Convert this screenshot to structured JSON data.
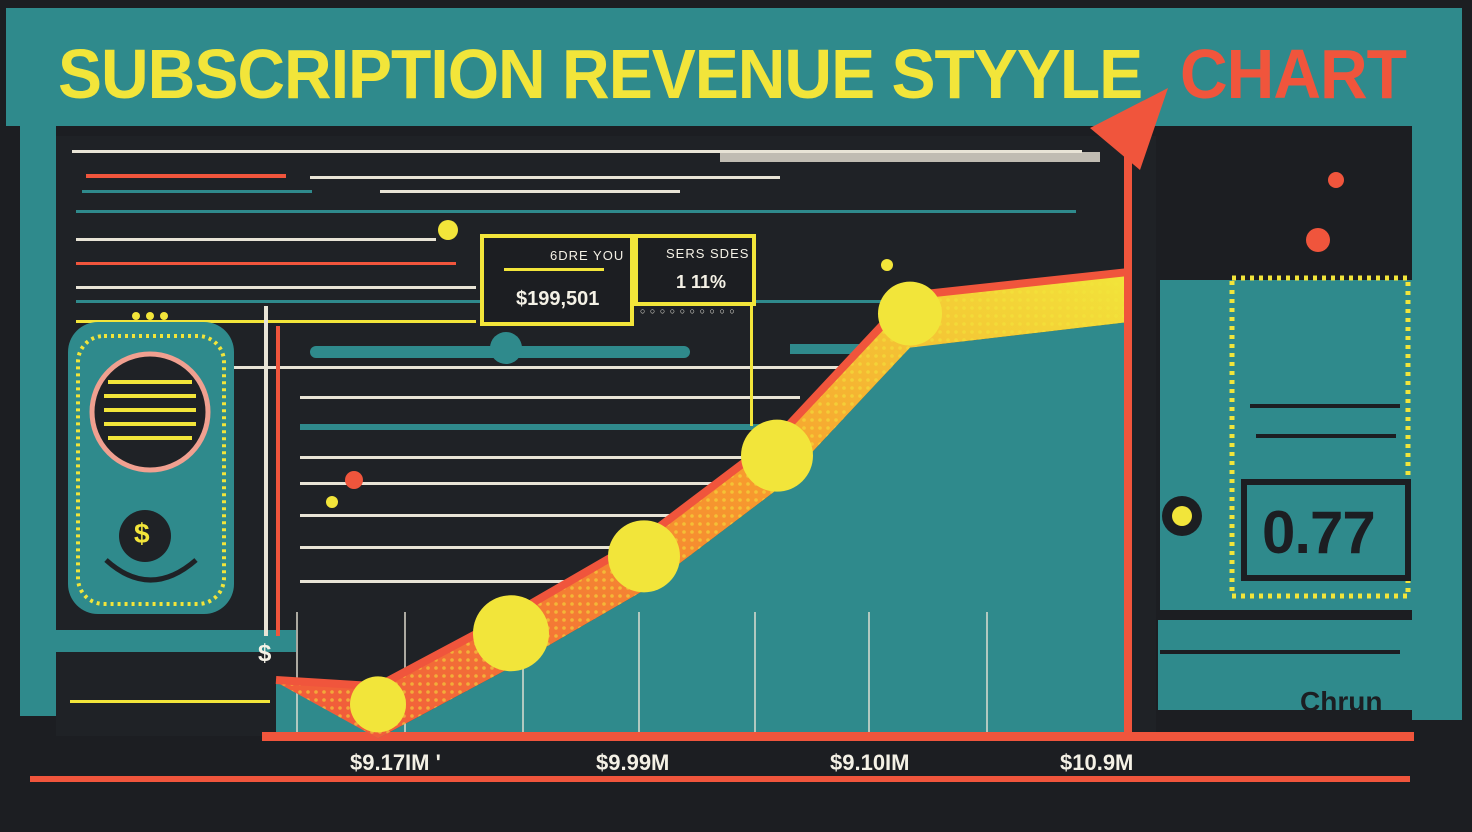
{
  "header": {
    "title": "SUBSCRIPTION REVENUE STYYLE",
    "title_accent": "CHART"
  },
  "info_boxes": {
    "revenue": {
      "label": "6DRE YOU",
      "value": "$199,501"
    },
    "growth": {
      "label": "SERS SDES",
      "value": "1 11%",
      "footnote": "○ ○ ○ ○ ○ ○ ○ ○ ○ ○"
    }
  },
  "kpi": {
    "value": "0.77",
    "label": "Chrun"
  },
  "wallet": {
    "symbol": "$"
  },
  "axis": {
    "currency_symbol": "$"
  },
  "colors": {
    "background": "#1c1e22",
    "teal": "#2f8a8c",
    "yellow": "#f2e53a",
    "red": "#f0553c",
    "cream": "#f4f1e6"
  },
  "chart_data": {
    "type": "area",
    "title": "SUBSCRIPTION REVENUE STYYLE CHART",
    "x_tick_labels": [
      "$9.17IM '",
      "$9.99M",
      "$9.10IM",
      "$10.9M"
    ],
    "series": [
      {
        "values": [
          0.4,
          1.6,
          2.9,
          4.6,
          7.0
        ]
      }
    ],
    "ylim": [
      0,
      10
    ],
    "grid": true,
    "legend": "none"
  }
}
